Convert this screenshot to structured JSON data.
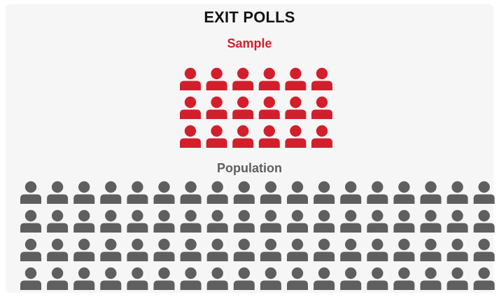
{
  "title": "EXIT POLLS",
  "sample": {
    "label": "Sample",
    "rows": 3,
    "cols": 6,
    "count": 18
  },
  "population": {
    "label": "Population",
    "rows": 4,
    "cols": 18,
    "count": 72
  },
  "colors": {
    "background": "#f6f6f6",
    "title": "#141414",
    "sample": "#d31f2c",
    "population": "#5f5f5f"
  },
  "icon": "person-icon"
}
